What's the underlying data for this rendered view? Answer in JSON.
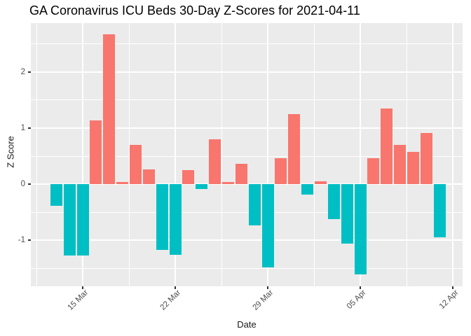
{
  "chart_data": {
    "type": "bar",
    "title": "GA Coronavirus ICU Beds 30-Day Z-Scores for 2021-04-11",
    "xlabel": "Date",
    "ylabel": "Z Score",
    "categories": [
      "13 Mar",
      "14 Mar",
      "15 Mar",
      "16 Mar",
      "17 Mar",
      "18 Mar",
      "19 Mar",
      "20 Mar",
      "21 Mar",
      "22 Mar",
      "23 Mar",
      "24 Mar",
      "25 Mar",
      "26 Mar",
      "27 Mar",
      "28 Mar",
      "29 Mar",
      "30 Mar",
      "31 Mar",
      "01 Apr",
      "02 Apr",
      "03 Apr",
      "04 Apr",
      "05 Apr",
      "06 Apr",
      "07 Apr",
      "08 Apr",
      "09 Apr",
      "10 Apr",
      "11 Apr"
    ],
    "values": [
      -0.39,
      -1.27,
      -1.27,
      1.14,
      2.67,
      0.04,
      0.7,
      0.27,
      -1.17,
      -1.26,
      0.25,
      -0.08,
      0.8,
      0.04,
      0.36,
      -0.73,
      -1.48,
      0.47,
      1.25,
      -0.18,
      0.05,
      -0.62,
      -1.06,
      -1.6,
      0.47,
      1.35,
      0.7,
      0.58,
      0.91,
      -0.94
    ],
    "x_tick_labels": [
      "15 Mar",
      "22 Mar",
      "29 Mar",
      "05 Apr",
      "12 Apr"
    ],
    "x_tick_category_indexes": [
      2,
      9,
      16,
      23,
      30
    ],
    "y_tick_labels": [
      "-1",
      "0",
      "1",
      "2"
    ],
    "y_tick_values": [
      -1,
      0,
      1,
      2
    ],
    "ylim": [
      -1.81,
      2.87
    ],
    "grid": {
      "major": "white",
      "minor": "white",
      "minor_y_step": 0.5
    },
    "legend": "none",
    "colors": {
      "positive_bar": "#F8766D",
      "negative_bar": "#00BFC4",
      "panel_background": "#EBEBEB",
      "tick_text": "#4D4D4D",
      "title_text": "#000000"
    }
  }
}
